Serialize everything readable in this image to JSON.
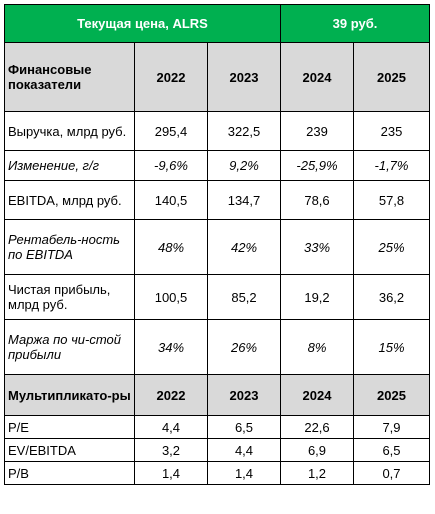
{
  "header": {
    "left": "Текущая цена, ALRS",
    "right": "39 руб."
  },
  "fin_section": {
    "title": "Финансовые показатели",
    "years": [
      "2022",
      "2023",
      "2024",
      "2025"
    ]
  },
  "fin_rows": [
    {
      "label": "Выручка, млрд руб.",
      "values": [
        "295,4",
        "322,5",
        "239",
        "235"
      ]
    },
    {
      "label": "Изменение, г/г",
      "values": [
        "-9,6%",
        "9,2%",
        "-25,9%",
        "-1,7%"
      ]
    },
    {
      "label": "EBITDA, млрд руб.",
      "values": [
        "140,5",
        "134,7",
        "78,6",
        "57,8"
      ]
    },
    {
      "label": "Рентабель-ность по EBITDA",
      "values": [
        "48%",
        "42%",
        "33%",
        "25%"
      ]
    },
    {
      "label": "Чистая прибыль, млрд руб.",
      "values": [
        "100,5",
        "85,2",
        "19,2",
        "36,2"
      ]
    },
    {
      "label": "Маржа по чи-стой прибыли",
      "values": [
        "34%",
        "26%",
        "8%",
        "15%"
      ]
    }
  ],
  "mult_section": {
    "title": "Мультипликато-ры",
    "years": [
      "2022",
      "2023",
      "2024",
      "2025"
    ]
  },
  "mult_rows": [
    {
      "label": "P/E",
      "values": [
        "4,4",
        "6,5",
        "22,6",
        "7,9"
      ]
    },
    {
      "label": "EV/EBITDA",
      "values": [
        "3,2",
        "4,4",
        "6,9",
        "6,5"
      ]
    },
    {
      "label": "P/B",
      "values": [
        "1,4",
        "1,4",
        "1,2",
        "0,7"
      ]
    }
  ]
}
